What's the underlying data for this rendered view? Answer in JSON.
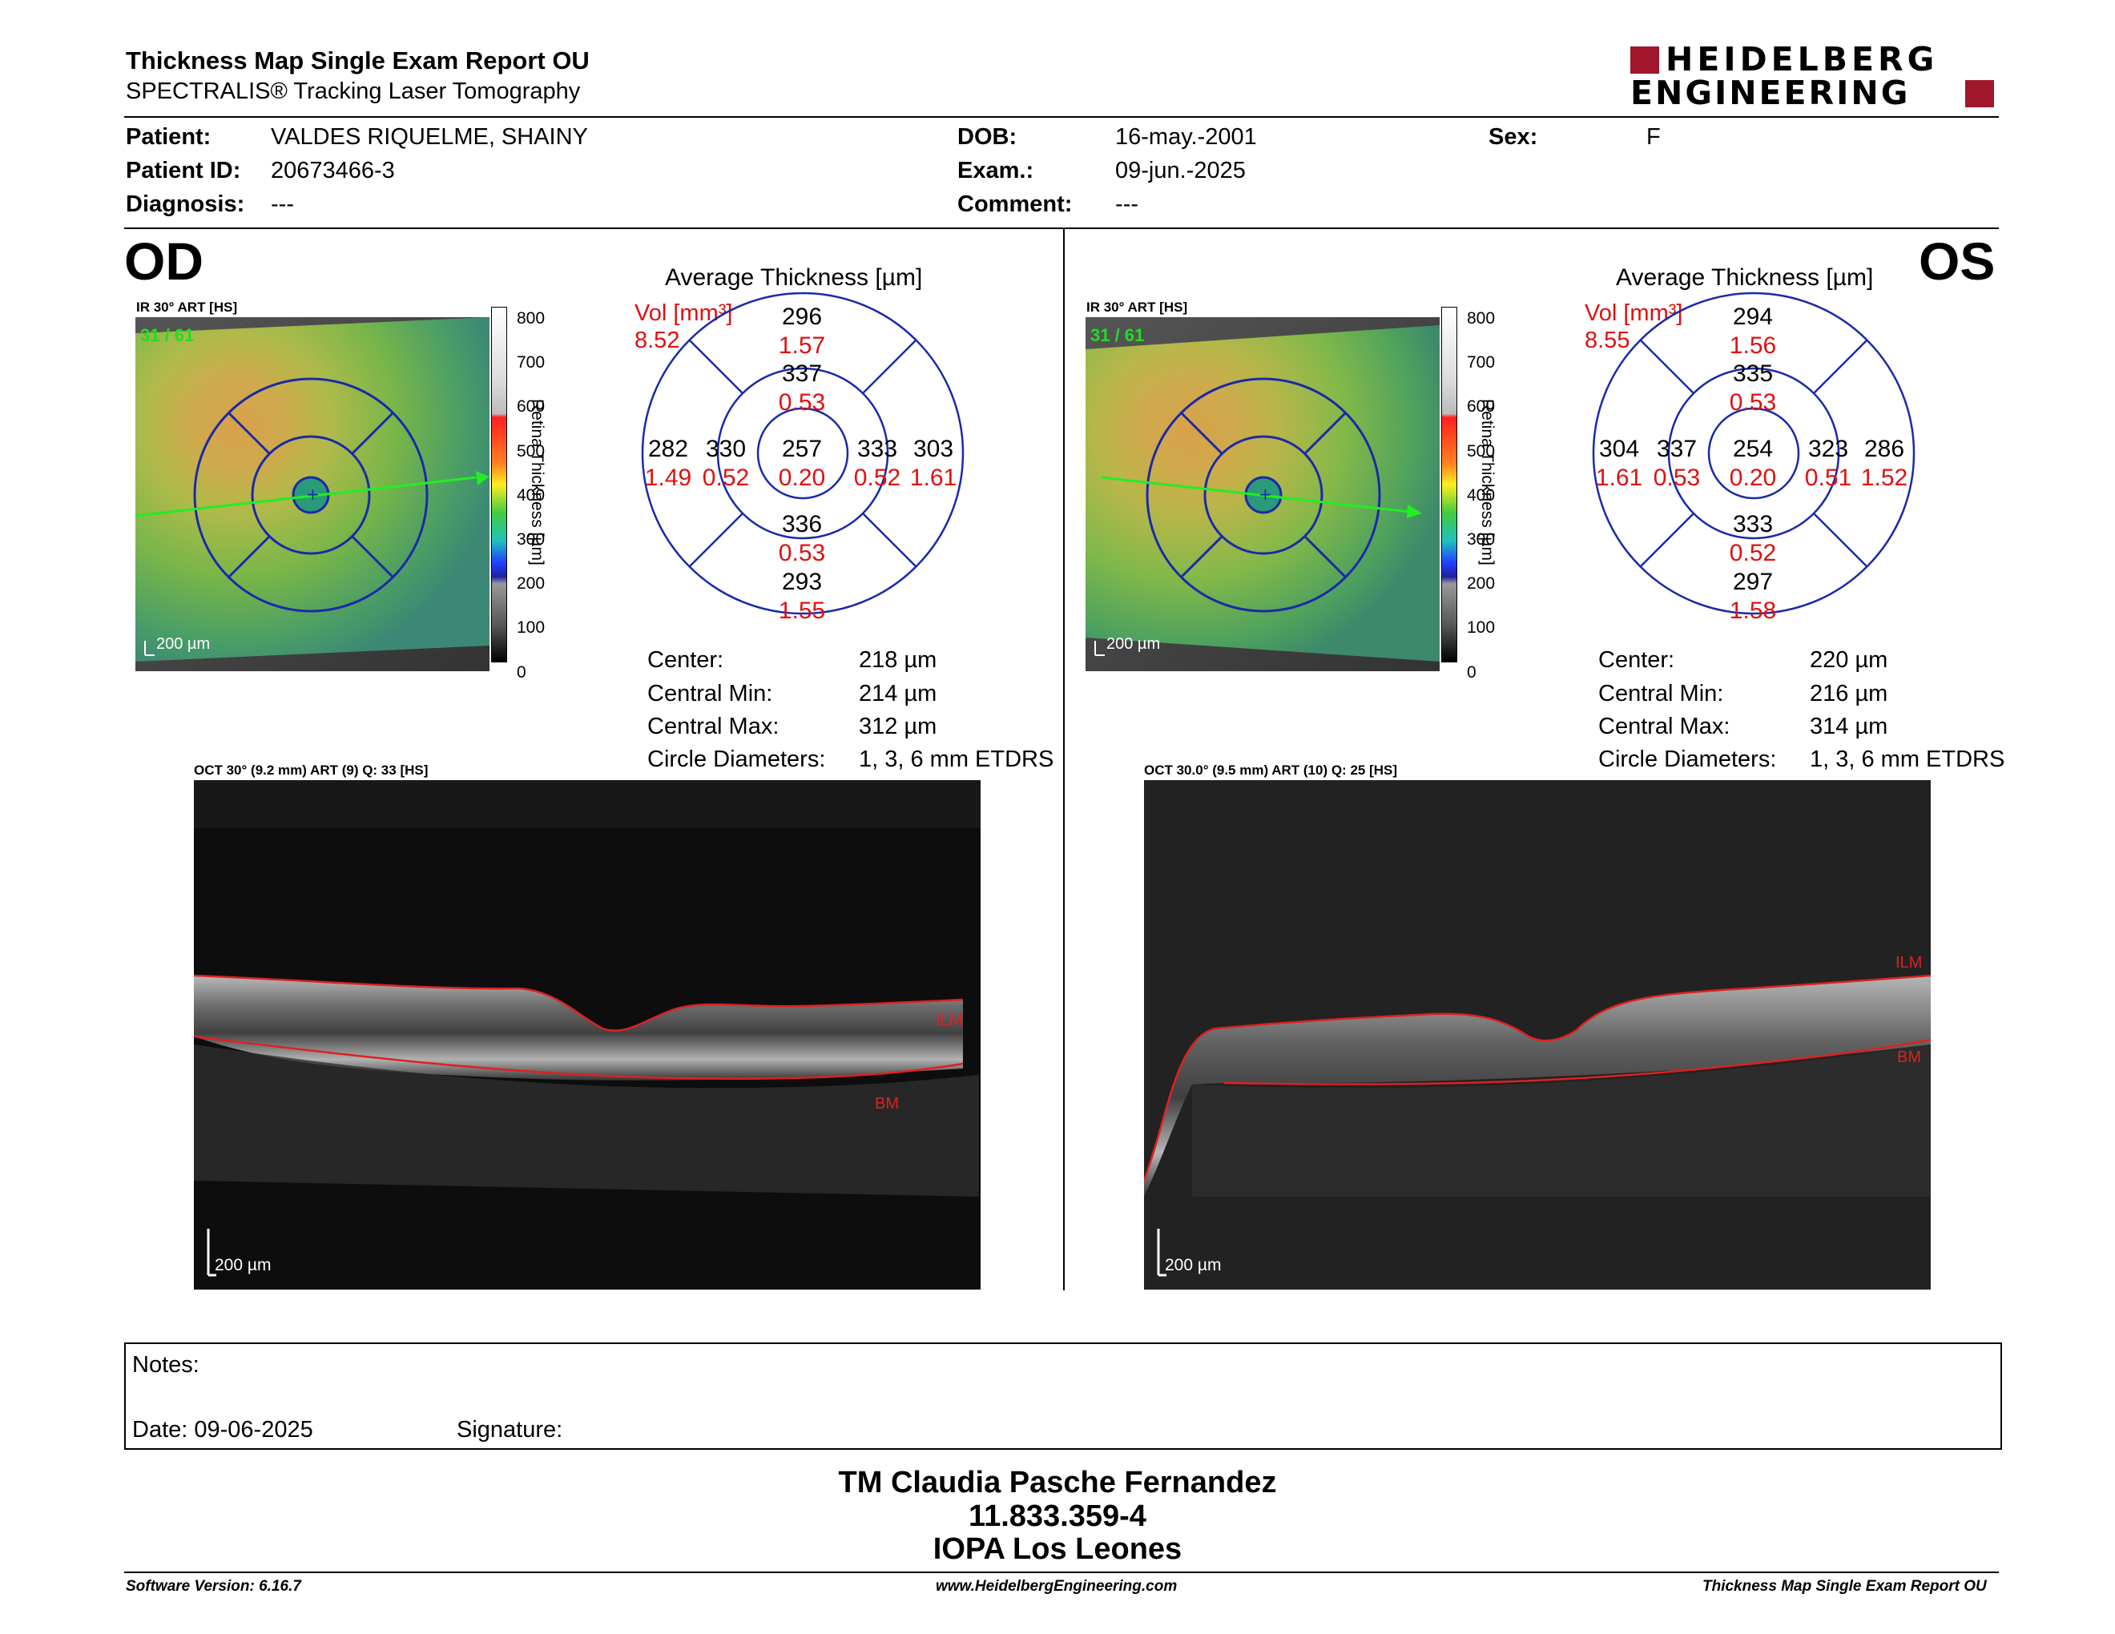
{
  "header": {
    "title": "Thickness Map Single Exam Report OU",
    "subtitle": "SPECTRALIS® Tracking Laser Tomography",
    "logo": {
      "line1": "HEIDELBERG",
      "line2": "ENGINEERING",
      "color": "#a0162a"
    }
  },
  "patient": {
    "patient_label": "Patient:",
    "patient_value": "VALDES RIQUELME, SHAINY",
    "id_label": "Patient ID:",
    "id_value": "20673466-3",
    "diagnosis_label": "Diagnosis:",
    "diagnosis_value": "---",
    "dob_label": "DOB:",
    "dob_value": "16-may.-2001",
    "exam_label": "Exam.:",
    "exam_value": "09-jun.-2025",
    "comment_label": "Comment:",
    "comment_value": "---",
    "sex_label": "Sex:",
    "sex_value": "F"
  },
  "od": {
    "eye": "OD",
    "ir_label": "IR 30° ART [HS]",
    "frame_counter": "31 / 61",
    "scale_label": "200 µm",
    "colorbar": {
      "ticks": [
        "800",
        "700",
        "600",
        "500",
        "400",
        "300",
        "200",
        "100",
        "0"
      ],
      "label": "Retina Thickness [µm]"
    },
    "chart_title": "Average Thickness [µm]",
    "vol_label": "Vol [mm³]",
    "vol_value": "8.52",
    "sectors": {
      "center": {
        "t": "257",
        "v": "0.20"
      },
      "inner_sup": {
        "t": "337",
        "v": "0.53"
      },
      "inner_inf": {
        "t": "336",
        "v": "0.53"
      },
      "inner_left": {
        "t": "330",
        "v": "0.52"
      },
      "inner_right": {
        "t": "333",
        "v": "0.52"
      },
      "outer_sup": {
        "t": "296",
        "v": "1.57"
      },
      "outer_inf": {
        "t": "293",
        "v": "1.55"
      },
      "outer_left": {
        "t": "282",
        "v": "1.49"
      },
      "outer_right": {
        "t": "303",
        "v": "1.61"
      }
    },
    "stats": {
      "center_label": "Center:",
      "center_value": "218 µm",
      "min_label": "Central Min:",
      "min_value": "214 µm",
      "max_label": "Central Max:",
      "max_value": "312 µm",
      "diam_label": "Circle Diameters:",
      "diam_value": "1, 3, 6 mm ETDRS"
    },
    "oct_label": "OCT 30° (9.2 mm) ART (9) Q: 33 [HS]",
    "ilm": "ILM",
    "bm": "BM",
    "oct_scale": "200 µm"
  },
  "os": {
    "eye": "OS",
    "ir_label": "IR 30° ART [HS]",
    "frame_counter": "31 / 61",
    "scale_label": "200 µm",
    "colorbar": {
      "ticks": [
        "800",
        "700",
        "600",
        "500",
        "400",
        "300",
        "200",
        "100",
        "0"
      ],
      "label": "Retina Thickness [µm]"
    },
    "chart_title": "Average Thickness [µm]",
    "vol_label": "Vol [mm³]",
    "vol_value": "8.55",
    "sectors": {
      "center": {
        "t": "254",
        "v": "0.20"
      },
      "inner_sup": {
        "t": "335",
        "v": "0.53"
      },
      "inner_inf": {
        "t": "333",
        "v": "0.52"
      },
      "inner_left": {
        "t": "337",
        "v": "0.53"
      },
      "inner_right": {
        "t": "323",
        "v": "0.51"
      },
      "outer_sup": {
        "t": "294",
        "v": "1.56"
      },
      "outer_inf": {
        "t": "297",
        "v": "1.58"
      },
      "outer_left": {
        "t": "304",
        "v": "1.61"
      },
      "outer_right": {
        "t": "286",
        "v": "1.52"
      }
    },
    "stats": {
      "center_label": "Center:",
      "center_value": "220 µm",
      "min_label": "Central Min:",
      "min_value": "216 µm",
      "max_label": "Central Max:",
      "max_value": "314 µm",
      "diam_label": "Circle Diameters:",
      "diam_value": "1, 3, 6 mm ETDRS"
    },
    "oct_label": "OCT 30.0° (9.5 mm) ART (10) Q: 25 [HS]",
    "ilm": "ILM",
    "bm": "BM",
    "oct_scale": "200 µm"
  },
  "notes": {
    "notes_label": "Notes:",
    "date_label": "Date: 09-06-2025",
    "signature_label": "Signature:"
  },
  "signatory": {
    "name": "TM Claudia Pasche Fernandez",
    "id": "11.833.359-4",
    "org": "IOPA Los Leones"
  },
  "footer": {
    "software": "Software Version: 6.16.7",
    "url": "www.HeidelbergEngineering.com",
    "report": "Thickness Map Single Exam Report OU"
  },
  "colors": {
    "accent_red": "#e01010",
    "ring_blue": "#1a2aa8",
    "logo_red": "#a0162a"
  }
}
